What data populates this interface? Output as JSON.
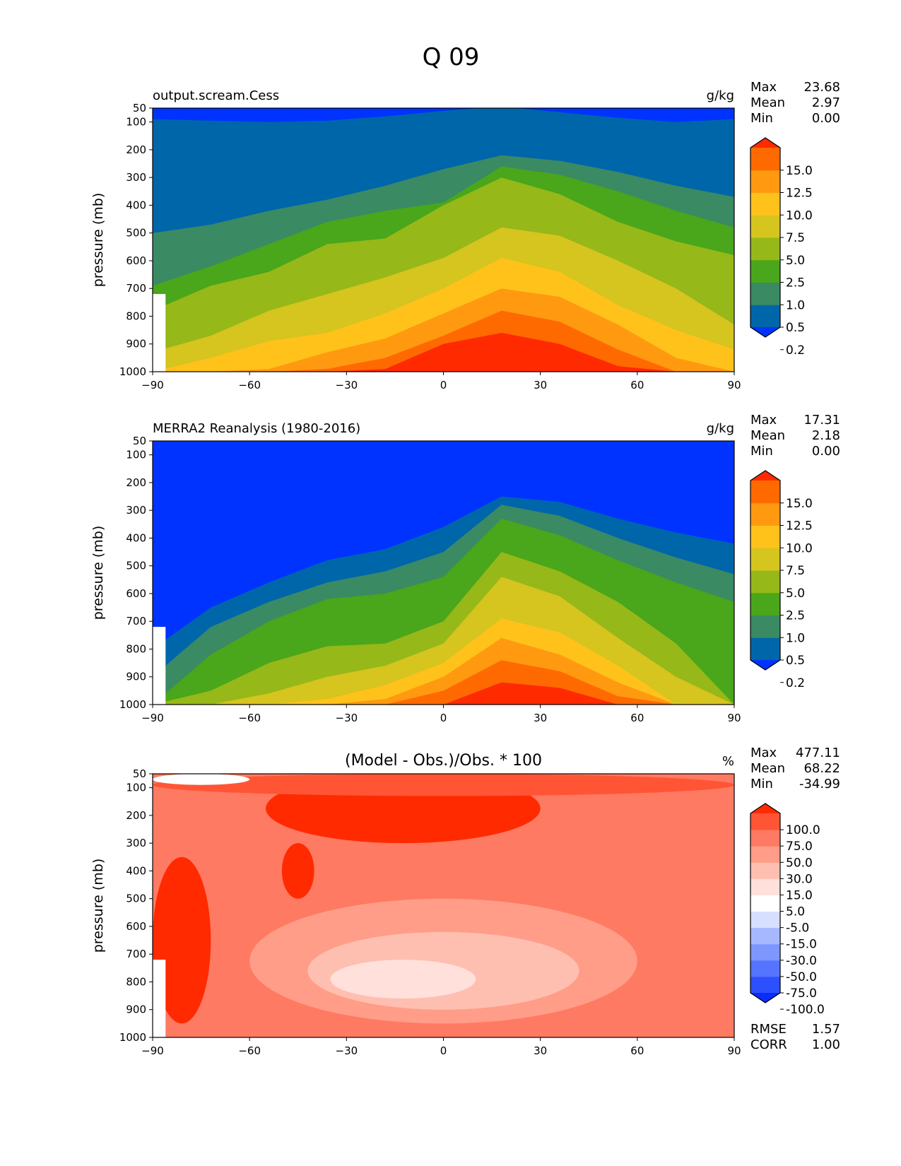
{
  "figure_title": "Q 09",
  "chart_data": [
    {
      "type": "contour",
      "title": "output.scream.Cess",
      "units": "g/kg",
      "ylabel": "pressure (mb)",
      "xlim": [
        -90,
        90
      ],
      "ylim": [
        1000,
        50
      ],
      "x_ticks": [
        "−90",
        "−60",
        "−30",
        "0",
        "30",
        "60",
        "90"
      ],
      "y_ticks": [
        "50",
        "100",
        "200",
        "300",
        "400",
        "500",
        "600",
        "700",
        "800",
        "900",
        "1000"
      ],
      "stats": {
        "max_label": "Max",
        "max": "23.68",
        "mean_label": "Mean",
        "mean": "2.97",
        "min_label": "Min",
        "min": "0.00"
      },
      "colorbar": {
        "levels": [
          "15.0",
          "12.5",
          "10.0",
          "7.5",
          "5.0",
          "2.5",
          "1.0",
          "0.5",
          "0.2"
        ],
        "colors": [
          "#0033ff",
          "#0066aa",
          "#3a8a64",
          "#4aa61a",
          "#96b818",
          "#d6c41f",
          "#ffc21a",
          "#ff9a10",
          "#ff6a00",
          "#ff2a00"
        ]
      },
      "contour_tops_mb": [
        [
          90,
          95,
          100,
          95,
          80,
          60,
          45,
          65,
          85,
          100,
          90
        ],
        [
          500,
          470,
          420,
          380,
          330,
          270,
          220,
          240,
          280,
          330,
          370
        ],
        [
          690,
          620,
          540,
          460,
          420,
          390,
          260,
          290,
          350,
          420,
          480
        ],
        [
          780,
          690,
          640,
          540,
          520,
          400,
          300,
          360,
          460,
          530,
          580
        ],
        [
          930,
          870,
          780,
          720,
          660,
          590,
          480,
          510,
          600,
          700,
          830
        ],
        [
          1000,
          950,
          890,
          860,
          790,
          700,
          590,
          640,
          760,
          850,
          920
        ],
        [
          1000,
          1000,
          990,
          930,
          880,
          790,
          700,
          730,
          830,
          950,
          1000
        ],
        [
          1000,
          1000,
          1000,
          990,
          950,
          870,
          780,
          820,
          920,
          1000,
          1000
        ],
        [
          1000,
          1000,
          1000,
          1000,
          990,
          900,
          860,
          900,
          980,
          1000,
          1000
        ]
      ]
    },
    {
      "type": "contour",
      "title": "MERRA2 Reanalysis (1980-2016)",
      "units": "g/kg",
      "ylabel": "pressure (mb)",
      "xlim": [
        -90,
        90
      ],
      "ylim": [
        1000,
        50
      ],
      "x_ticks": [
        "−90",
        "−60",
        "−30",
        "0",
        "30",
        "60",
        "90"
      ],
      "y_ticks": [
        "50",
        "100",
        "200",
        "300",
        "400",
        "500",
        "600",
        "700",
        "800",
        "900",
        "1000"
      ],
      "stats": {
        "max_label": "Max",
        "max": "17.31",
        "mean_label": "Mean",
        "mean": "2.18",
        "min_label": "Min",
        "min": "0.00"
      },
      "colorbar": {
        "levels": [
          "15.0",
          "12.5",
          "10.0",
          "7.5",
          "5.0",
          "2.5",
          "1.0",
          "0.5",
          "0.2"
        ],
        "colors": [
          "#0033ff",
          "#0066aa",
          "#3a8a64",
          "#4aa61a",
          "#96b818",
          "#d6c41f",
          "#ffc21a",
          "#ff9a10",
          "#ff6a00",
          "#ff2a00"
        ]
      },
      "contour_tops_mb": [
        [
          800,
          650,
          560,
          480,
          440,
          360,
          250,
          270,
          330,
          380,
          420
        ],
        [
          900,
          720,
          630,
          560,
          520,
          450,
          280,
          320,
          400,
          470,
          530
        ],
        [
          1000,
          820,
          700,
          620,
          600,
          540,
          330,
          390,
          480,
          560,
          630
        ],
        [
          1000,
          950,
          850,
          790,
          780,
          700,
          450,
          520,
          630,
          780,
          1000
        ],
        [
          1000,
          1000,
          960,
          900,
          860,
          780,
          540,
          610,
          760,
          900,
          1000
        ],
        [
          1000,
          1000,
          1000,
          980,
          930,
          850,
          690,
          740,
          860,
          1000,
          1000
        ],
        [
          1000,
          1000,
          1000,
          1000,
          980,
          900,
          760,
          820,
          920,
          1000,
          1000
        ],
        [
          1000,
          1000,
          1000,
          1000,
          1000,
          950,
          840,
          880,
          970,
          1000,
          1000
        ],
        [
          1000,
          1000,
          1000,
          1000,
          1000,
          1000,
          920,
          940,
          1000,
          1000,
          1000
        ]
      ]
    },
    {
      "type": "contour",
      "title": "(Model - Obs.)/Obs. * 100",
      "units": "%",
      "ylabel": "pressure (mb)",
      "xlim": [
        -90,
        90
      ],
      "ylim": [
        1000,
        50
      ],
      "x_ticks": [
        "−90",
        "−60",
        "−30",
        "0",
        "30",
        "60",
        "90"
      ],
      "y_ticks": [
        "50",
        "100",
        "200",
        "300",
        "400",
        "500",
        "600",
        "700",
        "800",
        "900",
        "1000"
      ],
      "stats": {
        "max_label": "Max",
        "max": "477.11",
        "mean_label": "Mean",
        "mean": "68.22",
        "min_label": "Min",
        "min": "-34.99"
      },
      "extra_stats": {
        "rmse_label": "RMSE",
        "rmse": "1.57",
        "corr_label": "CORR",
        "corr": "1.00"
      },
      "colorbar": {
        "levels": [
          "100.0",
          "75.0",
          "50.0",
          "30.0",
          "15.0",
          "5.0",
          "-5.0",
          "-15.0",
          "-30.0",
          "-50.0",
          "-75.0",
          "-100.0"
        ],
        "colors": [
          "#0a2cff",
          "#2d50ff",
          "#5574ff",
          "#7d97ff",
          "#a6b8ff",
          "#d6dfff",
          "#ffffff",
          "#ffe0da",
          "#ffbfb0",
          "#ff9d88",
          "#ff7a62",
          "#ff5535",
          "#ff2a00"
        ]
      }
    }
  ]
}
